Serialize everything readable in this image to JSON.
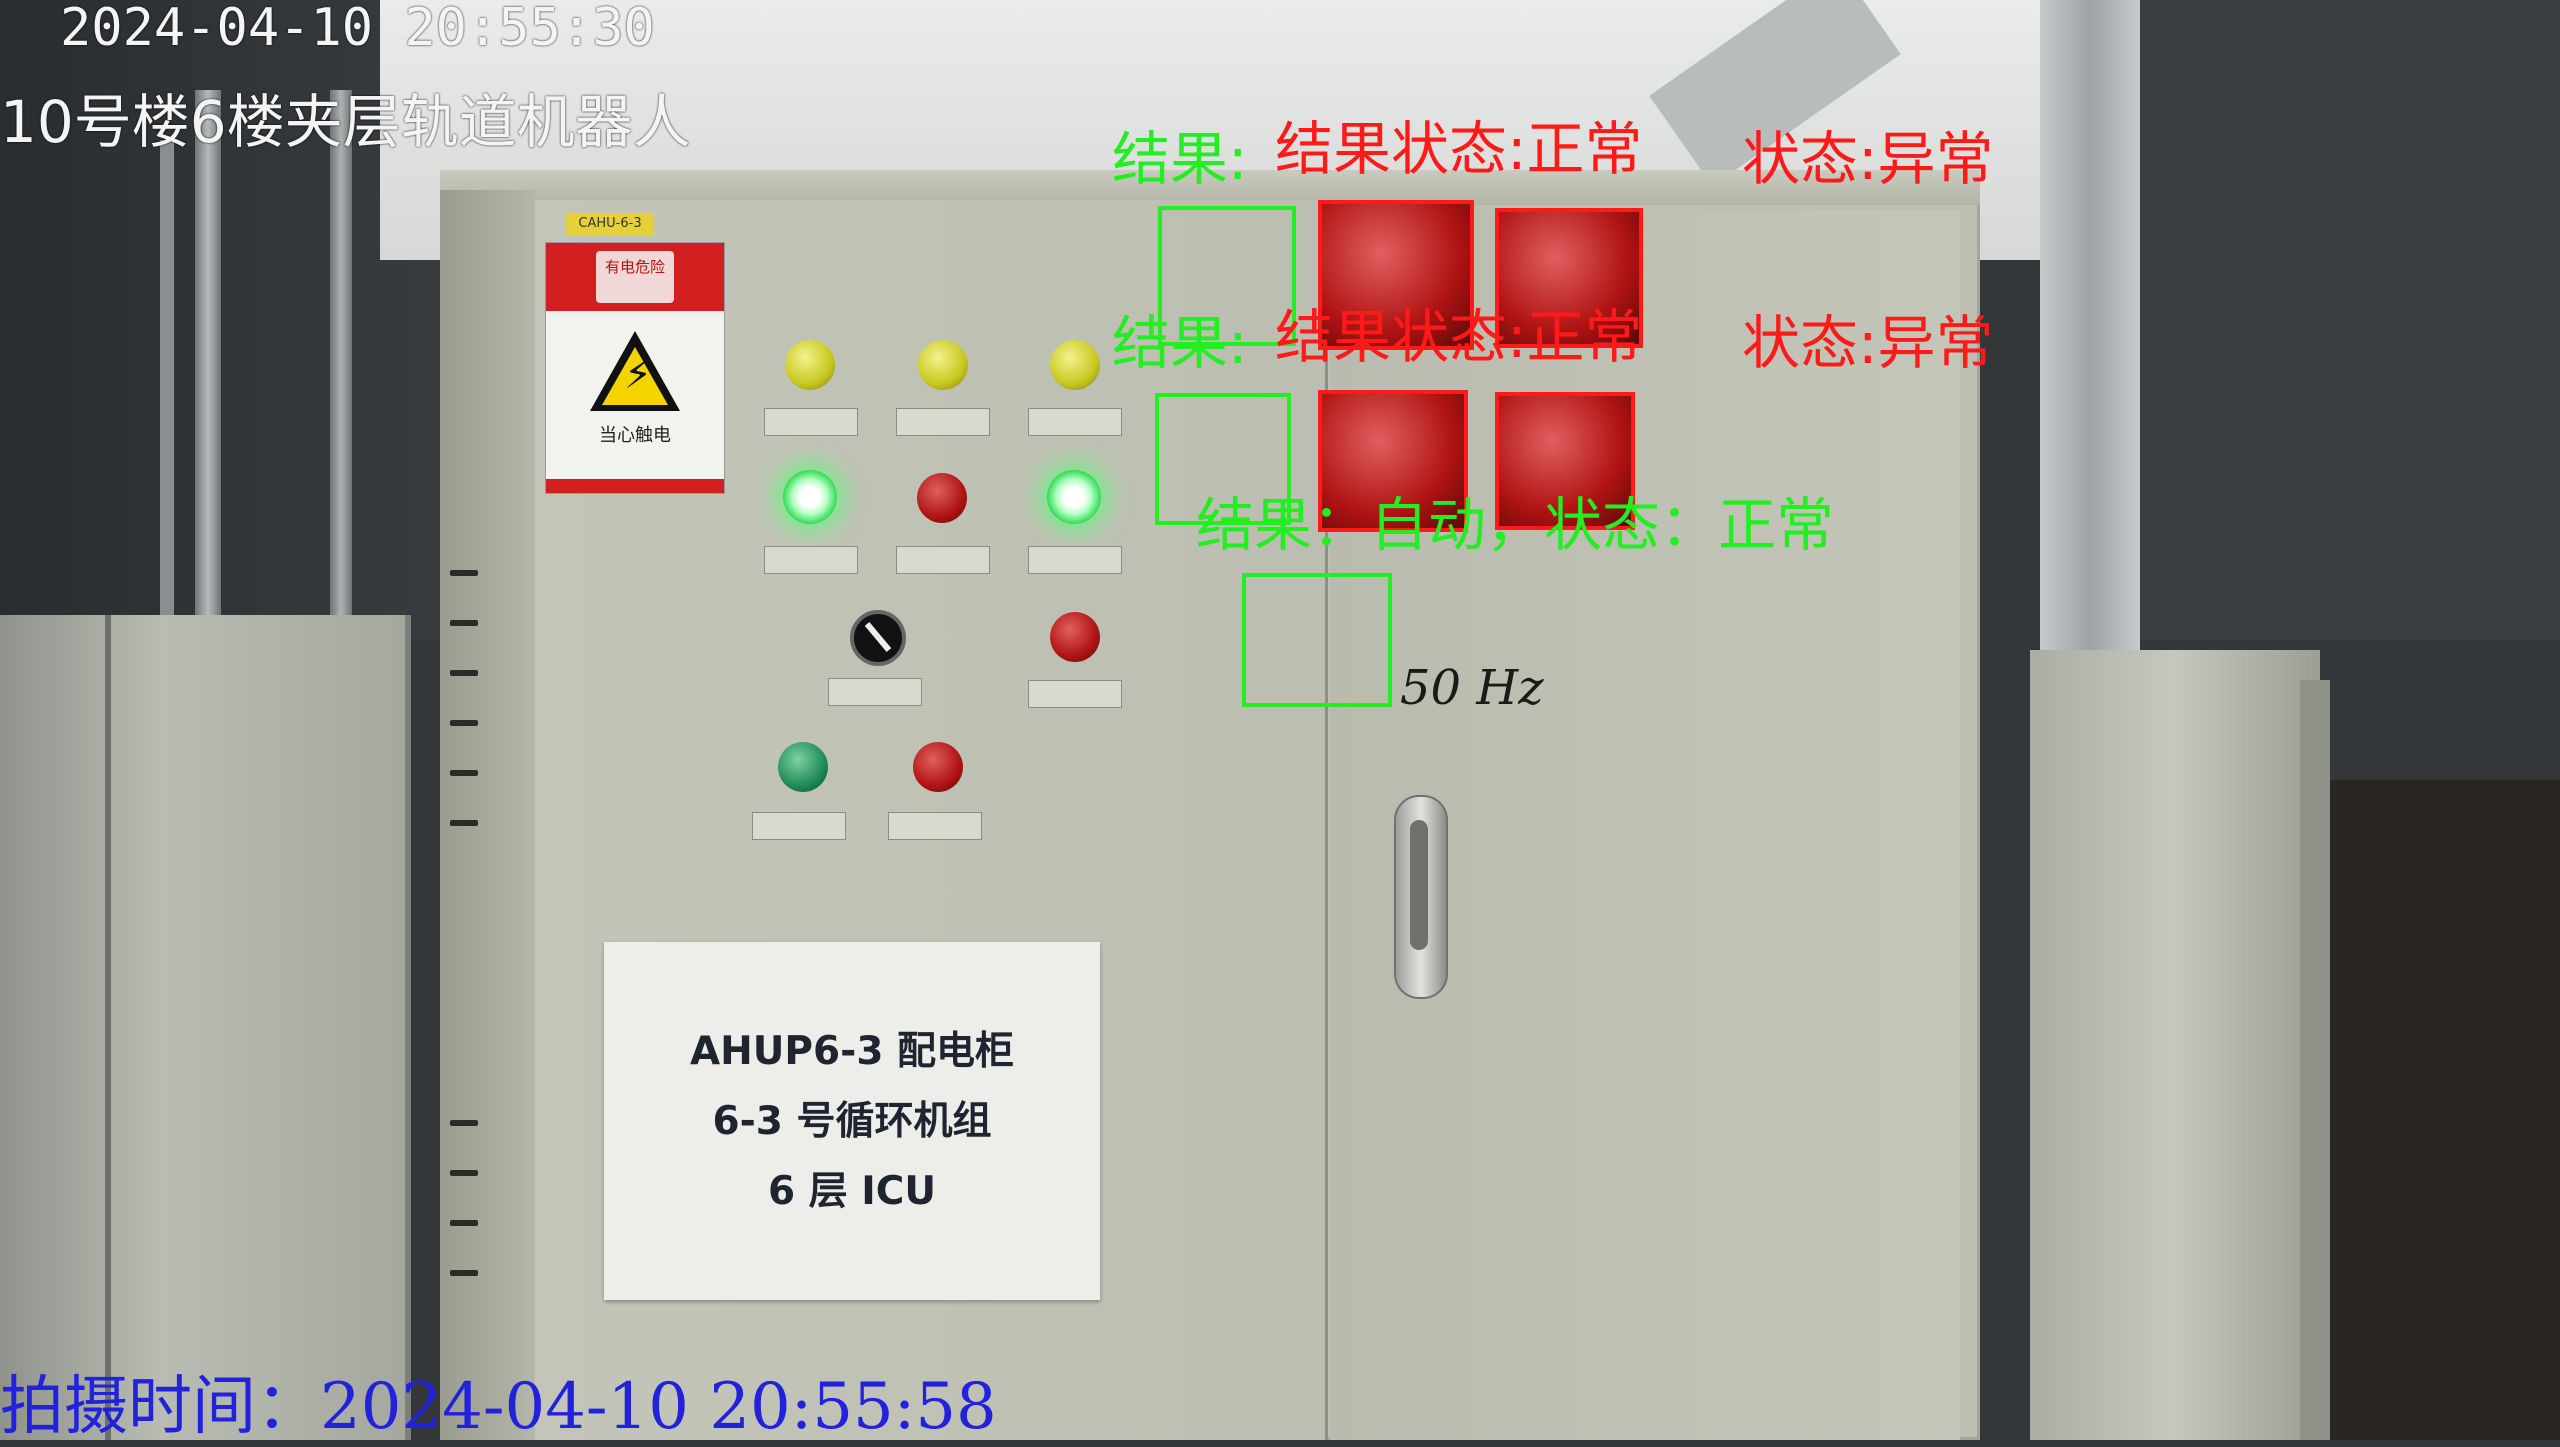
{
  "overlay": {
    "timestamp": "2024-04-10 20:55:30",
    "location": "10号楼6楼夹层轨道机器人",
    "capture_time": "拍摄时间：2024-04-10 20:55:58"
  },
  "cabinet": {
    "tag": "CAHU-6-3",
    "warning_text": "当心触电",
    "warning_header": "有电危险",
    "label_lines": [
      "AHUP6-3 配电柜",
      "6-3 号循环机组",
      "6 层 ICU"
    ],
    "handwriting": "50 Hz"
  },
  "detections": {
    "row1": {
      "green_text": "结果:",
      "red_text_a": "结果状态:正常",
      "red_text_b": "状态:异常"
    },
    "row2": {
      "green_text": "结果:",
      "red_text_a": "结果状态:正常",
      "red_text_b": "状态:异常"
    },
    "row3": {
      "green_text": "结果：自动，状态：正常"
    }
  },
  "colors": {
    "ok": "#22ee22",
    "alert": "#ff1a1a",
    "capture": "#2222dd"
  }
}
